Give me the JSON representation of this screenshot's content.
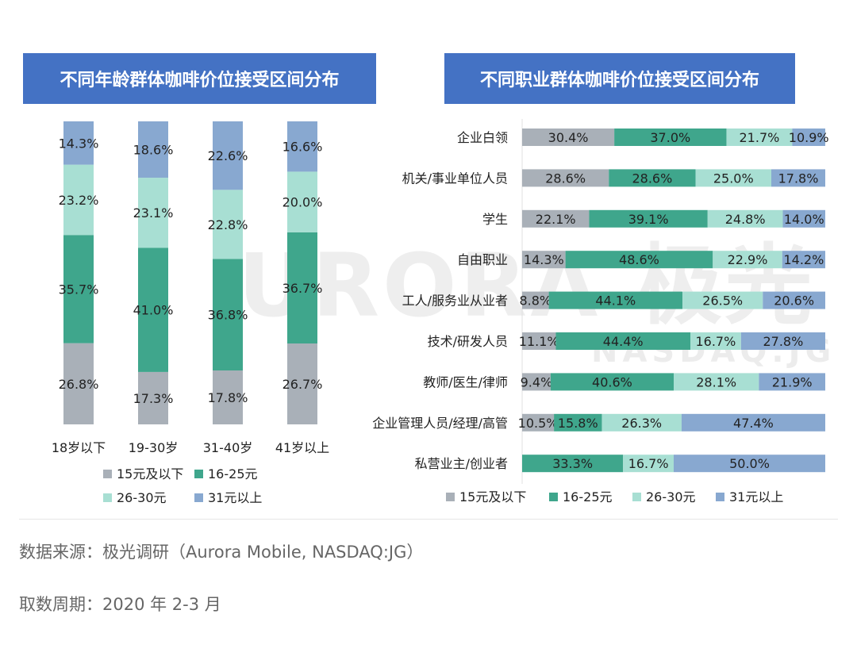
{
  "watermark": {
    "main": "AURORA 极光",
    "sub": "NASDAQ.JG"
  },
  "colors": {
    "15元及以下": "#A9B0B8",
    "16-25元": "#3FA68C",
    "26-30元": "#A8DFD3",
    "31元以上": "#88A8D0"
  },
  "chart_data": [
    {
      "type": "bar",
      "stacked": true,
      "orientation": "vertical",
      "title": "不同年龄群体咖啡价位接受区间分布",
      "categories": [
        "18岁以下",
        "19-30岁",
        "31-40岁",
        "41岁以上"
      ],
      "series": [
        {
          "name": "15元及以下",
          "values": [
            26.8,
            17.3,
            17.8,
            26.7
          ]
        },
        {
          "name": "16-25元",
          "values": [
            35.7,
            41.0,
            36.8,
            36.7
          ]
        },
        {
          "name": "26-30元",
          "values": [
            23.2,
            23.1,
            22.8,
            20.0
          ]
        },
        {
          "name": "31元以上",
          "values": [
            14.3,
            18.6,
            22.6,
            16.6
          ]
        }
      ],
      "legend": "bottom",
      "unit": "%"
    },
    {
      "type": "bar",
      "stacked": true,
      "orientation": "horizontal",
      "title": "不同职业群体咖啡价位接受区间分布",
      "categories": [
        "企业白领",
        "机关/事业单位人员",
        "学生",
        "自由职业",
        "工人/服务业从业者",
        "技术/研发人员",
        "教师/医生/律师",
        "企业管理人员/经理/高管",
        "私营业主/创业者"
      ],
      "series": [
        {
          "name": "15元及以下",
          "values": [
            30.4,
            28.6,
            22.1,
            14.3,
            8.8,
            11.1,
            9.4,
            10.5,
            0
          ]
        },
        {
          "name": "16-25元",
          "values": [
            37.0,
            28.6,
            39.1,
            48.6,
            44.1,
            44.4,
            40.6,
            15.8,
            33.3
          ]
        },
        {
          "name": "26-30元",
          "values": [
            21.7,
            25.0,
            24.8,
            22.9,
            26.5,
            16.7,
            28.1,
            26.3,
            16.7
          ]
        },
        {
          "name": "31元以上",
          "values": [
            10.9,
            17.8,
            14.0,
            14.2,
            20.6,
            27.8,
            21.9,
            47.4,
            50.0
          ]
        }
      ],
      "legend": "bottom",
      "unit": "%"
    }
  ],
  "footer": {
    "source": "数据来源：极光调研（Aurora Mobile, NASDAQ:JG）",
    "period": "取数周期：2020 年 2-3 月"
  }
}
